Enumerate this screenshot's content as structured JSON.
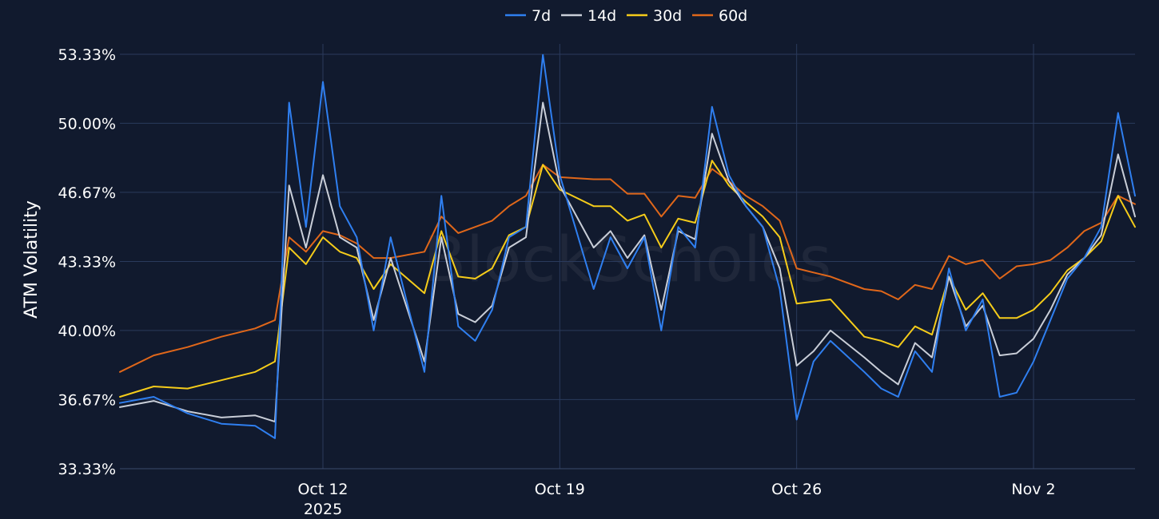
{
  "chart_data": {
    "type": "line",
    "ylabel": "ATM Volatility",
    "xlabel": "",
    "y_unit": "%",
    "ylim": [
      33.33,
      53.33
    ],
    "y_ticks": [
      {
        "value": 33.33,
        "label": "33.33%"
      },
      {
        "value": 36.67,
        "label": "36.67%"
      },
      {
        "value": 40.0,
        "label": "40.00%"
      },
      {
        "value": 43.33,
        "label": "43.33%"
      },
      {
        "value": 46.67,
        "label": "46.67%"
      },
      {
        "value": 50.0,
        "label": "50.00%"
      },
      {
        "value": 53.33,
        "label": "53.33%"
      }
    ],
    "xlim": [
      "2025-10-06",
      "2025-11-05"
    ],
    "x_ticks": [
      {
        "date": "2025-10-12",
        "label": "Oct 12",
        "sublabel": "2025"
      },
      {
        "date": "2025-10-19",
        "label": "Oct 19"
      },
      {
        "date": "2025-10-26",
        "label": "Oct 26"
      },
      {
        "date": "2025-11-02",
        "label": "Nov 2"
      }
    ],
    "grid": true,
    "legend_position": "top-center",
    "watermark": "BlockScholes",
    "series": [
      {
        "name": "7d",
        "color": "#2f7ff0",
        "x": [
          "2025-10-06",
          "2025-10-07",
          "2025-10-08",
          "2025-10-09",
          "2025-10-10",
          "2025-10-10 14:00",
          "2025-10-11",
          "2025-10-11 12:00",
          "2025-10-12",
          "2025-10-12 12:00",
          "2025-10-13",
          "2025-10-13 12:00",
          "2025-10-14",
          "2025-10-15",
          "2025-10-15 12:00",
          "2025-10-16",
          "2025-10-16 12:00",
          "2025-10-17",
          "2025-10-17 12:00",
          "2025-10-18",
          "2025-10-18 12:00",
          "2025-10-19",
          "2025-10-20",
          "2025-10-20 12:00",
          "2025-10-21",
          "2025-10-21 12:00",
          "2025-10-22",
          "2025-10-22 12:00",
          "2025-10-23",
          "2025-10-23 12:00",
          "2025-10-24",
          "2025-10-24 12:00",
          "2025-10-25",
          "2025-10-25 12:00",
          "2025-10-26",
          "2025-10-26 12:00",
          "2025-10-27",
          "2025-10-28",
          "2025-10-28 12:00",
          "2025-10-29",
          "2025-10-29 12:00",
          "2025-10-30",
          "2025-10-30 12:00",
          "2025-10-31",
          "2025-10-31 12:00",
          "2025-11-01",
          "2025-11-01 12:00",
          "2025-11-02",
          "2025-11-02 12:00",
          "2025-11-03",
          "2025-11-03 12:00",
          "2025-11-04",
          "2025-11-04 12:00",
          "2025-11-05"
        ],
        "y": [
          36.5,
          36.8,
          36.0,
          35.5,
          35.4,
          34.8,
          51.0,
          45.0,
          52.0,
          46.0,
          44.5,
          40.0,
          44.5,
          38.0,
          46.5,
          40.2,
          39.5,
          41.0,
          44.5,
          45.0,
          53.3,
          47.5,
          42.0,
          44.5,
          43.0,
          44.5,
          40.0,
          45.0,
          44.0,
          50.8,
          47.5,
          46.0,
          45.0,
          42.0,
          35.7,
          38.5,
          39.5,
          38.0,
          37.2,
          36.8,
          39.0,
          38.0,
          43.0,
          40.0,
          41.5,
          36.8,
          37.0,
          38.5,
          40.5,
          42.5,
          43.5,
          45.0,
          50.5,
          46.5
        ]
      },
      {
        "name": "14d",
        "color": "#c9ced8",
        "x": [
          "2025-10-06",
          "2025-10-07",
          "2025-10-08",
          "2025-10-09",
          "2025-10-10",
          "2025-10-10 14:00",
          "2025-10-11",
          "2025-10-11 12:00",
          "2025-10-12",
          "2025-10-12 12:00",
          "2025-10-13",
          "2025-10-13 12:00",
          "2025-10-14",
          "2025-10-15",
          "2025-10-15 12:00",
          "2025-10-16",
          "2025-10-16 12:00",
          "2025-10-17",
          "2025-10-17 12:00",
          "2025-10-18",
          "2025-10-18 12:00",
          "2025-10-19",
          "2025-10-20",
          "2025-10-20 12:00",
          "2025-10-21",
          "2025-10-21 12:00",
          "2025-10-22",
          "2025-10-22 12:00",
          "2025-10-23",
          "2025-10-23 12:00",
          "2025-10-24",
          "2025-10-24 12:00",
          "2025-10-25",
          "2025-10-25 12:00",
          "2025-10-26",
          "2025-10-26 12:00",
          "2025-10-27",
          "2025-10-28",
          "2025-10-28 12:00",
          "2025-10-29",
          "2025-10-29 12:00",
          "2025-10-30",
          "2025-10-30 12:00",
          "2025-10-31",
          "2025-10-31 12:00",
          "2025-11-01",
          "2025-11-01 12:00",
          "2025-11-02",
          "2025-11-02 12:00",
          "2025-11-03",
          "2025-11-03 12:00",
          "2025-11-04",
          "2025-11-04 12:00",
          "2025-11-05"
        ],
        "y": [
          36.3,
          36.6,
          36.1,
          35.8,
          35.9,
          35.6,
          47.0,
          44.0,
          47.5,
          44.5,
          44.0,
          40.5,
          43.5,
          38.5,
          44.5,
          40.8,
          40.4,
          41.2,
          44.0,
          44.5,
          51.0,
          47.0,
          44.0,
          44.8,
          43.5,
          44.6,
          41.0,
          44.8,
          44.4,
          49.5,
          47.2,
          46.0,
          45.0,
          43.0,
          38.3,
          39.0,
          40.0,
          38.7,
          38.0,
          37.4,
          39.4,
          38.7,
          42.6,
          40.2,
          41.2,
          38.8,
          38.9,
          39.6,
          41.0,
          42.7,
          43.5,
          44.6,
          48.5,
          45.5
        ]
      },
      {
        "name": "30d",
        "color": "#f5cc1a",
        "x": [
          "2025-10-06",
          "2025-10-07",
          "2025-10-08",
          "2025-10-09",
          "2025-10-10",
          "2025-10-10 14:00",
          "2025-10-11",
          "2025-10-11 12:00",
          "2025-10-12",
          "2025-10-12 12:00",
          "2025-10-13",
          "2025-10-13 12:00",
          "2025-10-14",
          "2025-10-15",
          "2025-10-15 12:00",
          "2025-10-16",
          "2025-10-16 12:00",
          "2025-10-17",
          "2025-10-17 12:00",
          "2025-10-18",
          "2025-10-18 12:00",
          "2025-10-19",
          "2025-10-20",
          "2025-10-20 12:00",
          "2025-10-21",
          "2025-10-21 12:00",
          "2025-10-22",
          "2025-10-22 12:00",
          "2025-10-23",
          "2025-10-23 12:00",
          "2025-10-24",
          "2025-10-24 12:00",
          "2025-10-25",
          "2025-10-25 12:00",
          "2025-10-26",
          "2025-10-26 12:00",
          "2025-10-27",
          "2025-10-28",
          "2025-10-28 12:00",
          "2025-10-29",
          "2025-10-29 12:00",
          "2025-10-30",
          "2025-10-30 12:00",
          "2025-10-31",
          "2025-10-31 12:00",
          "2025-11-01",
          "2025-11-01 12:00",
          "2025-11-02",
          "2025-11-02 12:00",
          "2025-11-03",
          "2025-11-03 12:00",
          "2025-11-04",
          "2025-11-04 12:00",
          "2025-11-05"
        ],
        "y": [
          36.8,
          37.3,
          37.2,
          37.6,
          38.0,
          38.5,
          44.0,
          43.2,
          44.5,
          43.8,
          43.5,
          42.0,
          43.2,
          41.8,
          44.8,
          42.6,
          42.5,
          43.0,
          44.6,
          45.0,
          48.0,
          46.8,
          46.0,
          46.0,
          45.3,
          45.6,
          44.0,
          45.4,
          45.2,
          48.2,
          47.0,
          46.2,
          45.5,
          44.5,
          41.3,
          41.4,
          41.5,
          39.7,
          39.5,
          39.2,
          40.2,
          39.8,
          42.6,
          41.0,
          41.8,
          40.6,
          40.6,
          41.0,
          41.8,
          42.9,
          43.5,
          44.3,
          46.5,
          45.0
        ]
      },
      {
        "name": "60d",
        "color": "#e0671a",
        "x": [
          "2025-10-06",
          "2025-10-07",
          "2025-10-08",
          "2025-10-09",
          "2025-10-10",
          "2025-10-10 14:00",
          "2025-10-11",
          "2025-10-11 12:00",
          "2025-10-12",
          "2025-10-12 12:00",
          "2025-10-13",
          "2025-10-13 12:00",
          "2025-10-14",
          "2025-10-15",
          "2025-10-15 12:00",
          "2025-10-16",
          "2025-10-16 12:00",
          "2025-10-17",
          "2025-10-17 12:00",
          "2025-10-18",
          "2025-10-18 12:00",
          "2025-10-19",
          "2025-10-20",
          "2025-10-20 12:00",
          "2025-10-21",
          "2025-10-21 12:00",
          "2025-10-22",
          "2025-10-22 12:00",
          "2025-10-23",
          "2025-10-23 12:00",
          "2025-10-24",
          "2025-10-24 12:00",
          "2025-10-25",
          "2025-10-25 12:00",
          "2025-10-26",
          "2025-10-26 12:00",
          "2025-10-27",
          "2025-10-28",
          "2025-10-28 12:00",
          "2025-10-29",
          "2025-10-29 12:00",
          "2025-10-30",
          "2025-10-30 12:00",
          "2025-10-31",
          "2025-10-31 12:00",
          "2025-11-01",
          "2025-11-01 12:00",
          "2025-11-02",
          "2025-11-02 12:00",
          "2025-11-03",
          "2025-11-03 12:00",
          "2025-11-04",
          "2025-11-04 12:00",
          "2025-11-05"
        ],
        "y": [
          38.0,
          38.8,
          39.2,
          39.7,
          40.1,
          40.5,
          44.5,
          43.8,
          44.8,
          44.6,
          44.2,
          43.5,
          43.5,
          43.8,
          45.5,
          44.7,
          45.0,
          45.3,
          46.0,
          46.5,
          48.0,
          47.4,
          47.3,
          47.3,
          46.6,
          46.6,
          45.5,
          46.5,
          46.4,
          47.8,
          47.2,
          46.5,
          46.0,
          45.3,
          43.0,
          42.8,
          42.6,
          42.0,
          41.9,
          41.5,
          42.2,
          42.0,
          43.6,
          43.2,
          43.4,
          42.5,
          43.1,
          43.2,
          43.4,
          44.0,
          44.8,
          45.2,
          46.5,
          46.1
        ]
      }
    ]
  }
}
